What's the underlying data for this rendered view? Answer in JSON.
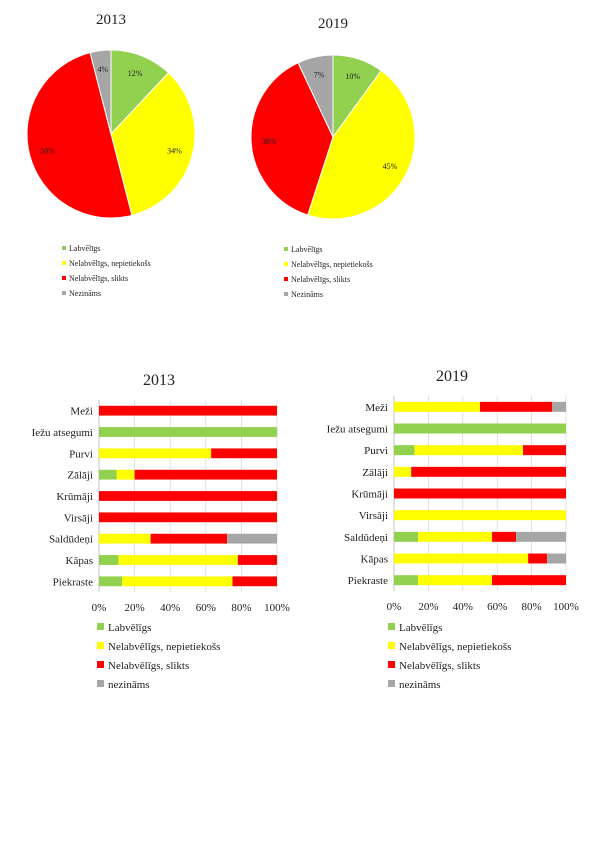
{
  "colors": {
    "Labvēlīgs": "#92d050",
    "Nelabvēlīgs, nepietiekošs": "#ffff00",
    "Nelabvēlīgs, slikts": "#ff0000",
    "Nezināms": "#a6a6a6"
  },
  "chart_data": [
    {
      "type": "pie",
      "title": "2013",
      "labels": [
        "Labvēlīgs",
        "Nelabvēlīgs, nepietiekošs",
        "Nelabvēlīgs, slikts",
        "Nezināms"
      ],
      "values": [
        12,
        34,
        50,
        4
      ],
      "value_labels": [
        "12%",
        "34%",
        "50%",
        "4%"
      ],
      "legend": [
        "Labvēlīgs",
        "Nelabvēlīgs, nepietiekošs",
        "Nelabvēlīgs, slikts",
        "Nezināms"
      ],
      "legend_position": "bottom"
    },
    {
      "type": "pie",
      "title": "2019",
      "labels": [
        "Labvēlīgs",
        "Nelabvēlīgs, nepietiekošs",
        "Nelabvēlīgs, slikts",
        "Nezināms"
      ],
      "values": [
        10,
        45,
        38,
        7
      ],
      "value_labels": [
        "10%",
        "45%",
        "38%",
        "7%"
      ],
      "legend": [
        "Labvēlīgs",
        "Nelabvēlīgs, nepietiekošs",
        "Nelabvēlīgs, slikts",
        "Nezināms"
      ],
      "legend_position": "bottom"
    },
    {
      "type": "bar",
      "orientation": "horizontal",
      "stacked": "percent",
      "title": "2013",
      "categories": [
        "Meži",
        "Iežu atsegumi",
        "Purvi",
        "Zālāji",
        "Krūmāji",
        "Virsāji",
        "Saldūdeņi",
        "Kāpas",
        "Piekraste"
      ],
      "series": [
        {
          "name": "Labvēlīgs",
          "values": [
            0,
            100,
            0,
            10,
            0,
            0,
            0,
            11,
            13
          ]
        },
        {
          "name": "Nelabvēlīgs, nepietiekošs",
          "values": [
            0,
            0,
            63,
            10,
            0,
            0,
            29,
            67,
            62
          ]
        },
        {
          "name": "Nelabvēlīgs, slikts",
          "values": [
            100,
            0,
            37,
            80,
            100,
            100,
            43,
            22,
            25
          ]
        },
        {
          "name": "nezināms",
          "values": [
            0,
            0,
            0,
            0,
            0,
            0,
            28,
            0,
            0
          ]
        }
      ],
      "xticks": [
        "0%",
        "20%",
        "40%",
        "60%",
        "80%",
        "100%"
      ],
      "xlim": [
        0,
        100
      ],
      "legend_position": "bottom"
    },
    {
      "type": "bar",
      "orientation": "horizontal",
      "stacked": "percent",
      "title": "2019",
      "categories": [
        "Meži",
        "Iežu atsegumi",
        "Purvi",
        "Zālāji",
        "Krūmāji",
        "Virsāji",
        "Saldūdeņi",
        "Kāpas",
        "Piekraste"
      ],
      "series": [
        {
          "name": "Labvēlīgs",
          "values": [
            0,
            100,
            12,
            0,
            0,
            0,
            14,
            0,
            14
          ]
        },
        {
          "name": "Nelabvēlīgs, nepietiekošs",
          "values": [
            50,
            0,
            63,
            10,
            0,
            100,
            43,
            78,
            43
          ]
        },
        {
          "name": "Nelabvēlīgs, slikts",
          "values": [
            42,
            0,
            25,
            90,
            100,
            0,
            14,
            11,
            43
          ]
        },
        {
          "name": "nezināms",
          "values": [
            8,
            0,
            0,
            0,
            0,
            0,
            29,
            11,
            0
          ]
        }
      ],
      "xticks": [
        "0%",
        "20%",
        "40%",
        "60%",
        "80%",
        "100%"
      ],
      "xlim": [
        0,
        100
      ],
      "legend_position": "bottom"
    }
  ]
}
